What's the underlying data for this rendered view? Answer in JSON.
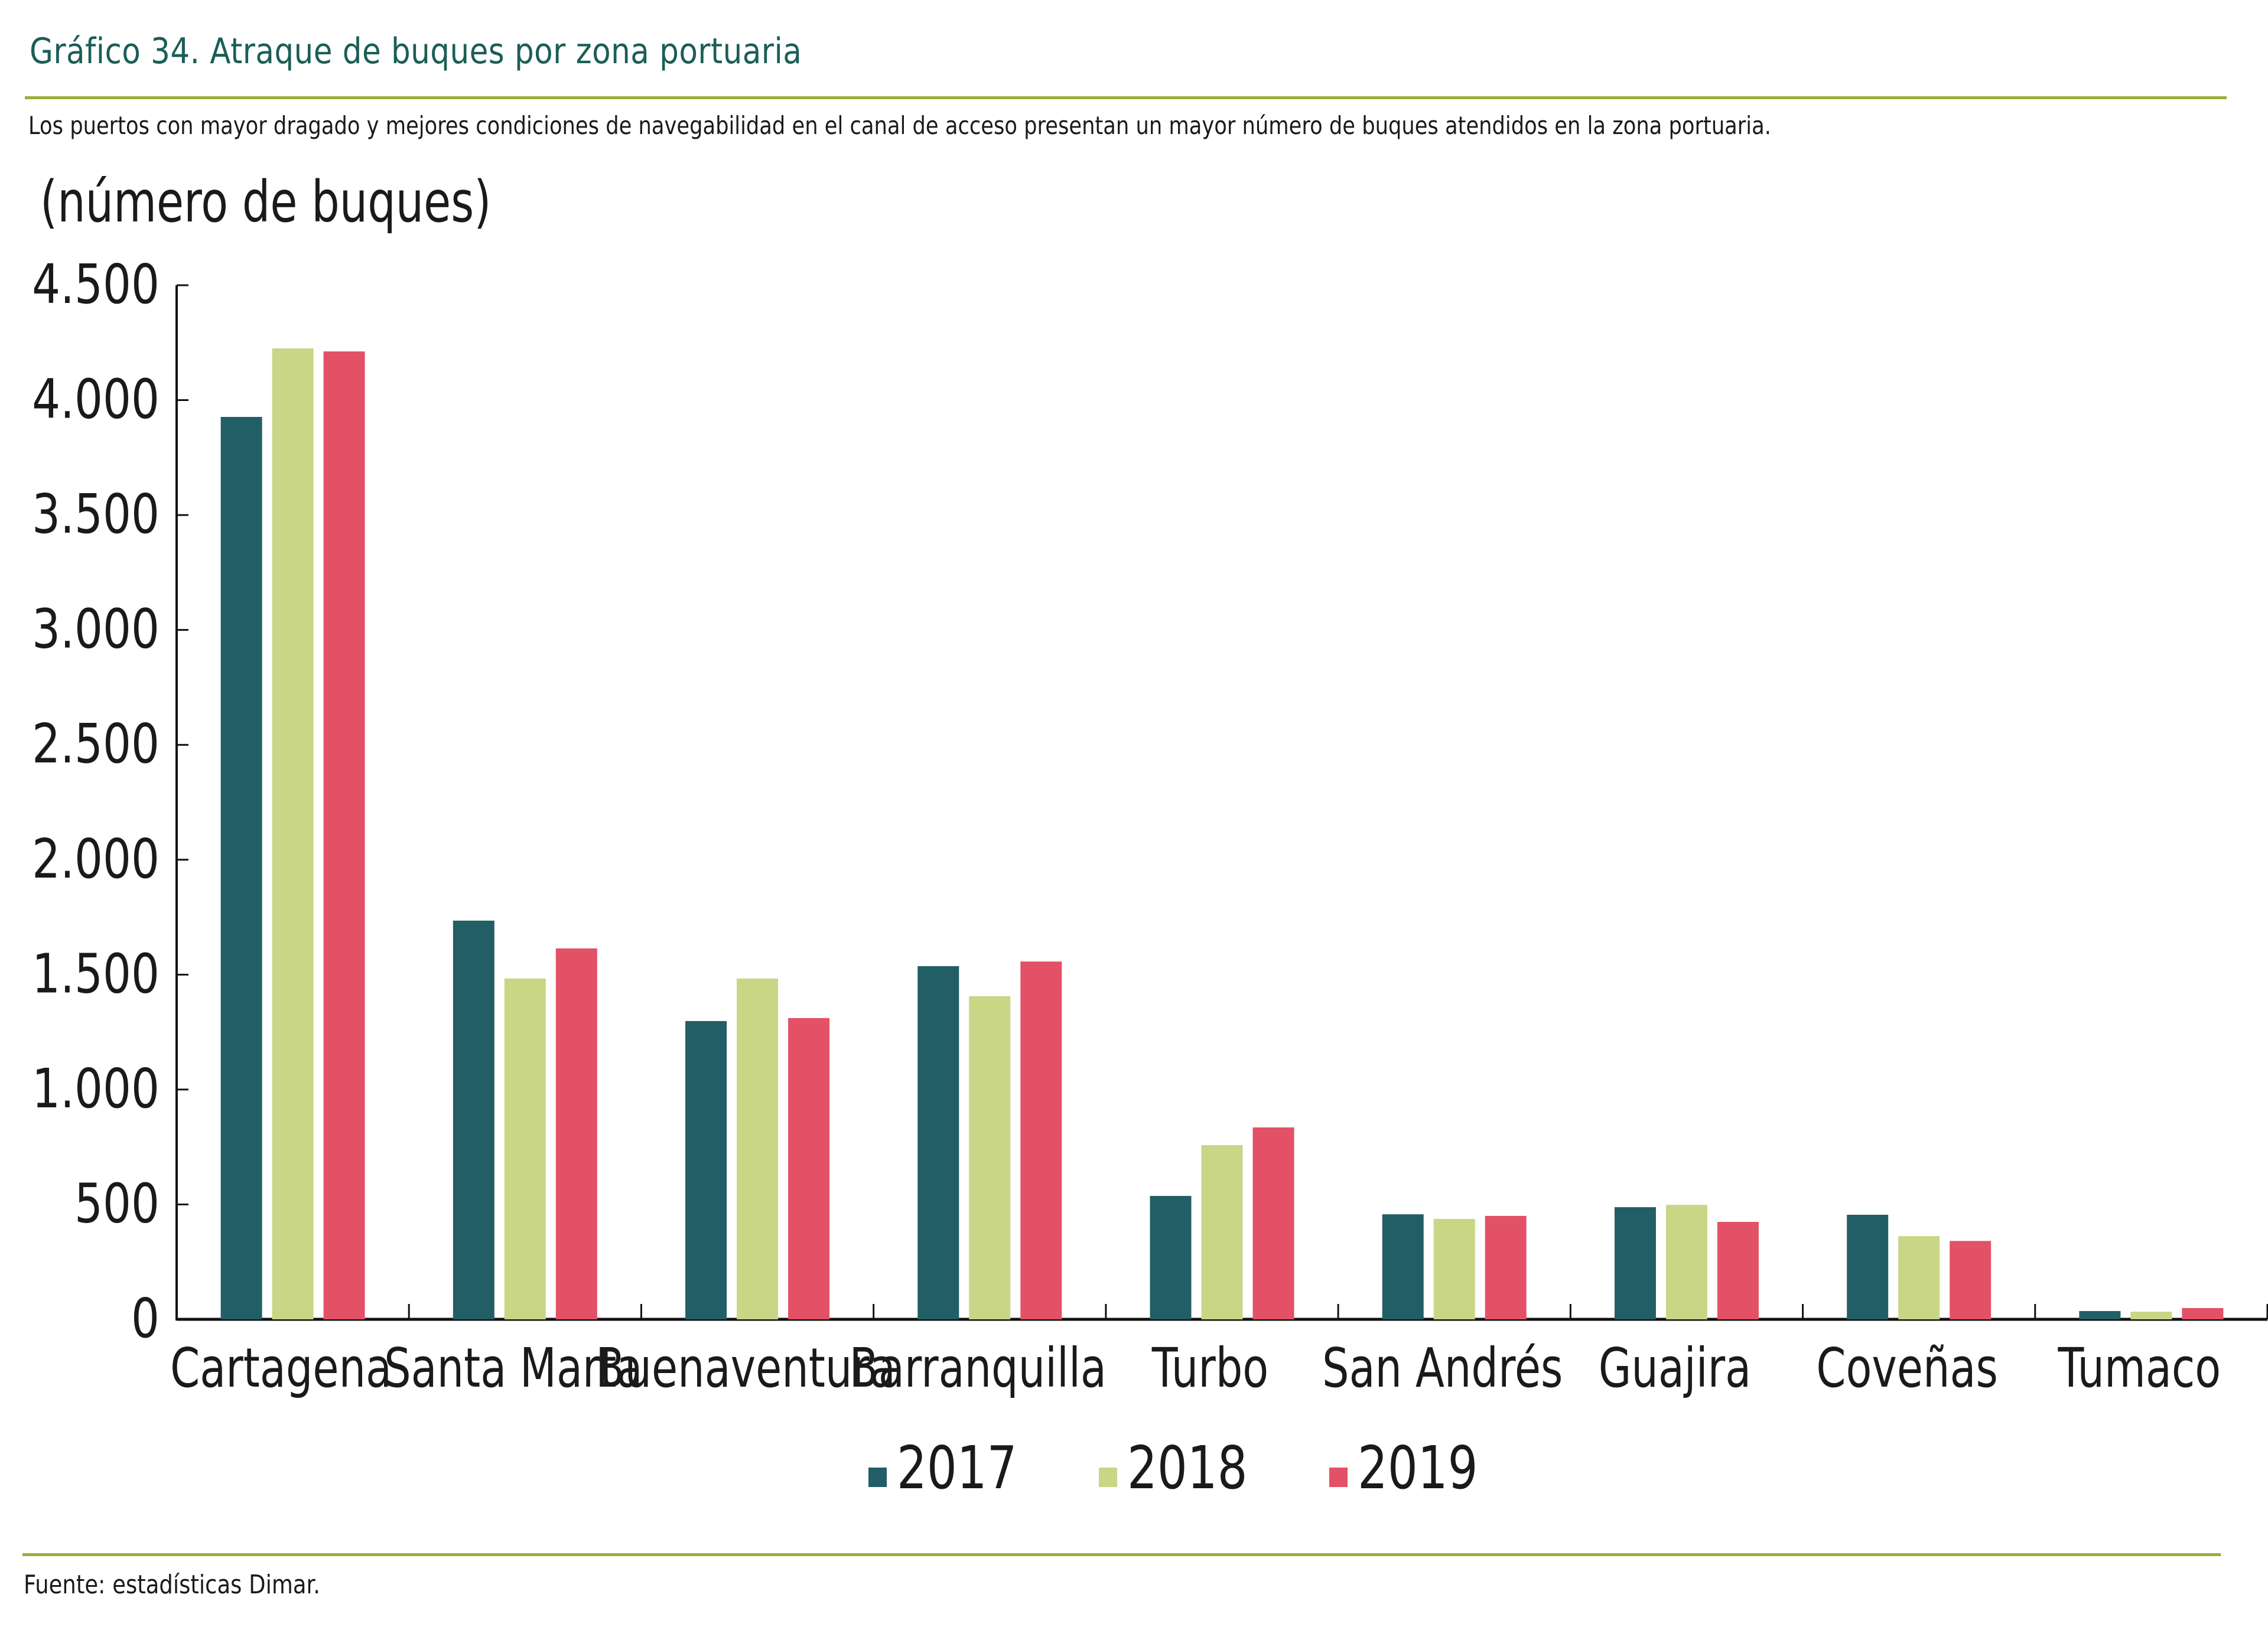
{
  "header": {
    "title": "Gráfico 34. Atraque de buques por zona portuaria",
    "subtitle": "Los puertos con mayor dragado y mejores condiciones de navegabilidad en el canal de acceso presentan un mayor número de buques atendidos en la zona portuaria."
  },
  "footer": {
    "source": "Fuente: estadísticas Dimar."
  },
  "colors": {
    "title": "#1b5e57",
    "rule": "#9aad3c",
    "series_2017": "#225e65",
    "series_2018": "#c8d686",
    "series_2019": "#e25165"
  },
  "chart_data": {
    "type": "bar",
    "title": "Gráfico 34. Atraque de buques por zona portuaria",
    "xlabel": "",
    "ylabel": "(número de buques)",
    "ylim": [
      0,
      4500
    ],
    "yticks": [
      0,
      500,
      1000,
      1500,
      2000,
      2500,
      3000,
      3500,
      4000,
      4500
    ],
    "ytick_labels": [
      "0",
      "500",
      "1.000",
      "1.500",
      "2.000",
      "2.500",
      "3.000",
      "3.500",
      "4.000",
      "4.500"
    ],
    "grid": false,
    "legend_position": "bottom-center",
    "categories": [
      "Cartagena",
      "Santa Marta",
      "Buenaventura",
      "Barranquilla",
      "Turbo",
      "San Andrés",
      "Guajira",
      "Coveñas",
      "Tumaco"
    ],
    "series": [
      {
        "name": "2017",
        "color": "#225e65",
        "values": [
          3927,
          1735,
          1298,
          1537,
          537,
          457,
          488,
          455,
          36
        ]
      },
      {
        "name": "2018",
        "color": "#c8d686",
        "values": [
          4225,
          1483,
          1483,
          1406,
          758,
          437,
          498,
          362,
          33
        ]
      },
      {
        "name": "2019",
        "color": "#e25165",
        "values": [
          4212,
          1614,
          1311,
          1557,
          835,
          450,
          424,
          341,
          49
        ]
      }
    ]
  }
}
